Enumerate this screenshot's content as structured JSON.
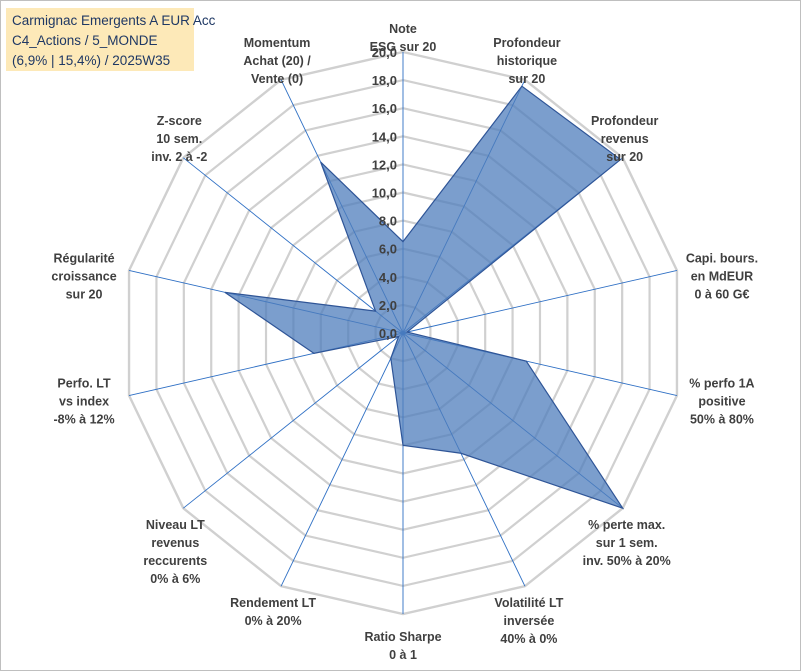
{
  "title_box": {
    "line1": "Carmignac Emergents A EUR Acc",
    "line2": "C4_Actions / 5_MONDE",
    "line3": "(6,9% | 15,4%) / 2025W35"
  },
  "chart_data": {
    "type": "radar",
    "rlim": [
      0,
      20
    ],
    "tick_labels": [
      "0,0",
      "2,0",
      "4,0",
      "6,0",
      "8,0",
      "10,0",
      "12,0",
      "14,0",
      "16,0",
      "18,0",
      "20,0"
    ],
    "axes": [
      {
        "label": [
          "Note",
          "ESG sur 20"
        ],
        "value": 6.5
      },
      {
        "label": [
          "Profondeur",
          "historique",
          "sur 20"
        ],
        "value": 19.5
      },
      {
        "label": [
          "Profondeur",
          "revenus",
          "sur 20"
        ],
        "value": 19.8
      },
      {
        "label": [
          "Capi. bours.",
          "en MdEUR",
          "0 à 60 G€"
        ],
        "value": 0.3
      },
      {
        "label": [
          "% perfo 1A",
          "positive",
          "50% à 80%"
        ],
        "value": 9.0
      },
      {
        "label": [
          "% perte max.",
          "sur 1 sem.",
          "inv. 50% à 20%"
        ],
        "value": 20.0
      },
      {
        "label": [
          "Volatilité LT",
          "inversée",
          "40% à 0%"
        ],
        "value": 9.5
      },
      {
        "label": [
          "Ratio Sharpe",
          "0 à 1"
        ],
        "value": 8.0
      },
      {
        "label": [
          "Rendement LT",
          "0% à 20%"
        ],
        "value": 2.0
      },
      {
        "label": [
          "Niveau LT",
          "revenus",
          "reccurents",
          "0% à 6%"
        ],
        "value": 0.4
      },
      {
        "label": [
          "Perfo. LT",
          "vs index",
          "-8% à 12%"
        ],
        "value": 6.5
      },
      {
        "label": [
          "Régularité",
          "croissance",
          "sur 20"
        ],
        "value": 13.0
      },
      {
        "label": [
          "Z-score",
          "10 sem.",
          "inv. 2 à -2"
        ],
        "value": 2.5
      },
      {
        "label": [
          "Momentum",
          "Achat (20) /",
          "Vente (0)"
        ],
        "value": 13.5
      }
    ],
    "series": [
      {
        "values": [
          6.5,
          19.5,
          19.8,
          0.3,
          9.0,
          20.0,
          9.5,
          8.0,
          2.0,
          0.4,
          6.5,
          13.0,
          2.5,
          13.5
        ]
      }
    ],
    "colors": {
      "fill": "#4f7dbc",
      "fill_opacity": 0.75,
      "stroke": "#2f5597",
      "grid": "#d0d0d0",
      "spoke": "#2e6fc4",
      "title_bg": "#fde9b8",
      "title_text": "#1f3864",
      "label_text": "#404040"
    }
  }
}
